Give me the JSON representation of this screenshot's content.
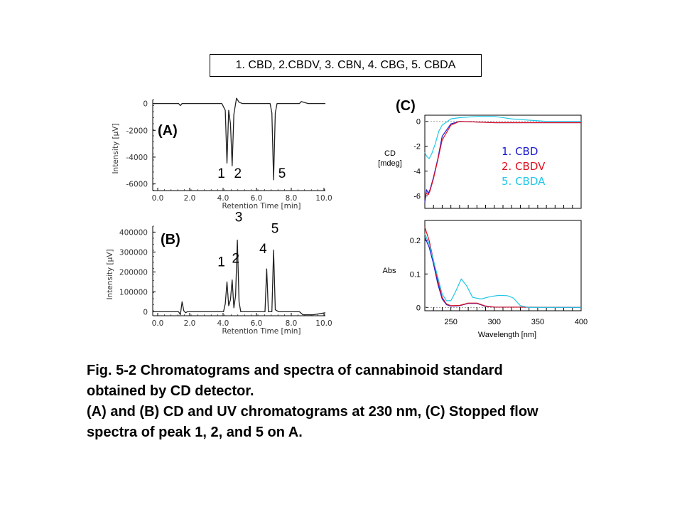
{
  "header": {
    "compounds": "1. CBD, 2.CBDV, 3. CBN, 4. CBG, 5. CBDA"
  },
  "caption": {
    "line1": "Fig. 5-2  Chromatograms and spectra of cannabinoid standard",
    "line2": "obtained by CD detector.",
    "line3": "(A) and (B) CD and UV chromatograms at 230 nm, (C) Stopped flow",
    "line4": "spectra of  peak 1, 2, and 5 on A."
  },
  "colors": {
    "cbd": "#1a1ad0",
    "cbdv": "#e01020",
    "cbda": "#20c8e8",
    "trace": "#222222"
  },
  "chart_data": [
    {
      "type": "line",
      "panel_label": "(A)",
      "xlabel": "Retention  Time [min]",
      "ylabel": "Intensity  [μV]",
      "xlim": [
        0,
        10
      ],
      "ylim": [
        -6500,
        300
      ],
      "xticks": [
        "0.0",
        "2.0",
        "4.0",
        "6.0",
        "8.0",
        "10.0"
      ],
      "yticks": [
        "0",
        "-2000",
        "-4000",
        "-6000"
      ],
      "ytick_values": [
        0,
        -2000,
        -4000,
        -6000
      ],
      "peak_labels": [
        "1",
        "2",
        "5"
      ],
      "peaks": [
        {
          "label": "1",
          "x": 4.3,
          "y": -4450
        },
        {
          "label": "2",
          "x": 4.6,
          "y": -4650
        },
        {
          "label": "5",
          "x": 7.0,
          "y": -5700
        }
      ],
      "series": [
        {
          "x": [
            0,
            1.5,
            1.6,
            1.7,
            3.0,
            4.0,
            4.2,
            4.3,
            4.4,
            4.5,
            4.6,
            4.7,
            4.85,
            5.0,
            5.2,
            6.0,
            6.8,
            6.9,
            7.0,
            7.1,
            7.2,
            7.5,
            8.5,
            8.6,
            9.0,
            10.0
          ],
          "y": [
            0,
            0,
            -150,
            0,
            0,
            0,
            -500,
            -4450,
            -500,
            -1500,
            -4650,
            -800,
            400,
            100,
            0,
            0,
            0,
            -700,
            -5700,
            -700,
            0,
            0,
            0,
            150,
            0,
            0
          ]
        }
      ]
    },
    {
      "type": "line",
      "panel_label": "(B)",
      "xlabel": "Retention  Time [min]",
      "ylabel": "Intensity  [μV]",
      "xlim": [
        0,
        10
      ],
      "ylim": [
        -20000,
        430000
      ],
      "xticks": [
        "0.0",
        "2.0",
        "4.0",
        "6.0",
        "8.0",
        "10.0"
      ],
      "yticks": [
        "400000",
        "300000",
        "200000",
        "100000",
        "0"
      ],
      "ytick_values": [
        400000,
        300000,
        200000,
        100000,
        0
      ],
      "peak_labels": [
        "1",
        "2",
        "3",
        "4",
        "5"
      ],
      "peaks": [
        {
          "label": "1",
          "x": 4.3,
          "y": 150000
        },
        {
          "label": "2",
          "x": 4.6,
          "y": 160000
        },
        {
          "label": "3",
          "x": 4.9,
          "y": 360000
        },
        {
          "label": "4",
          "x": 6.6,
          "y": 215000
        },
        {
          "label": "5",
          "x": 7.0,
          "y": 310000
        }
      ],
      "series": [
        {
          "x": [
            0,
            1.5,
            1.6,
            1.7,
            1.8,
            1.9,
            2.0,
            4.1,
            4.2,
            4.3,
            4.4,
            4.5,
            4.6,
            4.7,
            4.8,
            4.9,
            5.0,
            5.1,
            6.5,
            6.6,
            6.7,
            6.9,
            7.0,
            7.1,
            7.3,
            8.5,
            8.7,
            9.3,
            10.0
          ],
          "y": [
            0,
            0,
            -15000,
            50000,
            5000,
            -5000,
            0,
            0,
            40000,
            150000,
            30000,
            60000,
            160000,
            20000,
            80000,
            360000,
            50000,
            0,
            0,
            215000,
            0,
            0,
            310000,
            10000,
            0,
            0,
            -15000,
            -15000,
            -5000
          ]
        }
      ]
    },
    {
      "type": "line",
      "panel_label": "(C)",
      "xlabel": "",
      "ylabel": "CD\n[mdeg]",
      "xlim": [
        220,
        400
      ],
      "ylim": [
        -7,
        0.5
      ],
      "yticks": [
        "0",
        "-2",
        "-4",
        "-6"
      ],
      "ytick_values": [
        0,
        -2,
        -4,
        -6
      ],
      "legend": [
        "1. CBD",
        "2. CBDV",
        "5. CBDA"
      ],
      "series": [
        {
          "name": "1. CBD",
          "x": [
            220,
            222,
            224,
            226,
            230,
            235,
            240,
            250,
            260,
            300,
            350,
            400
          ],
          "y": [
            -6.5,
            -5.5,
            -5.8,
            -5.5,
            -4.5,
            -3.0,
            -1.2,
            -0.2,
            0,
            -0.1,
            -0.1,
            -0.1
          ]
        },
        {
          "name": "2. CBDV",
          "x": [
            220,
            222,
            224,
            226,
            230,
            235,
            240,
            250,
            260,
            300,
            350,
            400
          ],
          "y": [
            -6.0,
            -5.8,
            -5.9,
            -5.6,
            -4.6,
            -3.1,
            -1.5,
            -0.3,
            0,
            -0.1,
            -0.1,
            -0.1
          ]
        },
        {
          "name": "5. CBDA",
          "x": [
            220,
            222,
            225,
            228,
            232,
            236,
            240,
            250,
            260,
            280,
            300,
            320,
            340,
            360,
            400
          ],
          "y": [
            -2.5,
            -2.8,
            -3.0,
            -2.6,
            -1.8,
            -0.8,
            -0.3,
            0.2,
            0.3,
            0.4,
            0.4,
            0.2,
            0.1,
            0.0,
            0.0
          ]
        }
      ]
    },
    {
      "type": "line",
      "panel_label": "",
      "xlabel": "Wavelength  [nm]",
      "ylabel": "Abs",
      "xlim": [
        220,
        400
      ],
      "ylim": [
        -0.01,
        0.26
      ],
      "xticks": [
        "250",
        "300",
        "350",
        "400"
      ],
      "xtick_values": [
        250,
        300,
        350,
        400
      ],
      "yticks": [
        "0.2",
        "0.1",
        "0"
      ],
      "ytick_values": [
        0.2,
        0.1,
        0
      ],
      "series": [
        {
          "name": "1. CBD",
          "x": [
            220,
            225,
            230,
            235,
            240,
            245,
            250,
            260,
            270,
            280,
            290,
            300,
            400
          ],
          "y": [
            0.21,
            0.18,
            0.13,
            0.07,
            0.025,
            0.008,
            0.004,
            0.005,
            0.012,
            0.012,
            0.003,
            0.001,
            0
          ]
        },
        {
          "name": "2. CBDV",
          "x": [
            220,
            225,
            230,
            235,
            240,
            245,
            250,
            260,
            270,
            280,
            290,
            300,
            400
          ],
          "y": [
            0.24,
            0.2,
            0.14,
            0.08,
            0.03,
            0.01,
            0.005,
            0.006,
            0.013,
            0.013,
            0.004,
            0.001,
            0
          ]
        },
        {
          "name": "5. CBDA",
          "x": [
            220,
            225,
            230,
            235,
            240,
            245,
            250,
            255,
            262,
            268,
            275,
            285,
            295,
            305,
            315,
            322,
            330,
            340,
            400
          ],
          "y": [
            0.22,
            0.19,
            0.14,
            0.09,
            0.04,
            0.02,
            0.02,
            0.045,
            0.085,
            0.065,
            0.03,
            0.025,
            0.032,
            0.036,
            0.035,
            0.028,
            0.005,
            0,
            0
          ]
        }
      ]
    }
  ]
}
